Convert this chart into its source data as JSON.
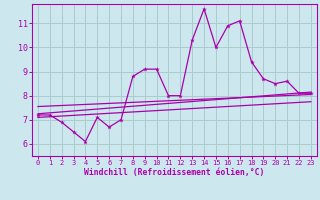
{
  "background_color": "#cce8ee",
  "grid_color": "#aacccc",
  "line_color": "#aa00aa",
  "xlabel": "Windchill (Refroidissement éolien,°C)",
  "xlim": [
    -0.5,
    23.5
  ],
  "ylim": [
    5.5,
    11.8
  ],
  "yticks": [
    6,
    7,
    8,
    9,
    10,
    11
  ],
  "xticks": [
    0,
    1,
    2,
    3,
    4,
    5,
    6,
    7,
    8,
    9,
    10,
    11,
    12,
    13,
    14,
    15,
    16,
    17,
    18,
    19,
    20,
    21,
    22,
    23
  ],
  "series1_x": [
    0,
    1,
    2,
    3,
    4,
    5,
    6,
    7,
    8,
    9,
    10,
    11,
    12,
    13,
    14,
    15,
    16,
    17,
    18,
    19,
    20,
    21,
    22,
    23
  ],
  "series1_y": [
    7.2,
    7.2,
    6.9,
    6.5,
    6.1,
    7.1,
    6.7,
    7.0,
    8.8,
    9.1,
    9.1,
    8.0,
    8.0,
    10.3,
    11.6,
    10.0,
    10.9,
    11.1,
    9.4,
    8.7,
    8.5,
    8.6,
    8.1,
    8.1
  ],
  "series2_x": [
    0,
    23
  ],
  "series2_y": [
    7.25,
    8.15
  ],
  "series3_x": [
    0,
    23
  ],
  "series3_y": [
    7.55,
    8.05
  ],
  "series4_x": [
    0,
    23
  ],
  "series4_y": [
    7.1,
    7.75
  ]
}
